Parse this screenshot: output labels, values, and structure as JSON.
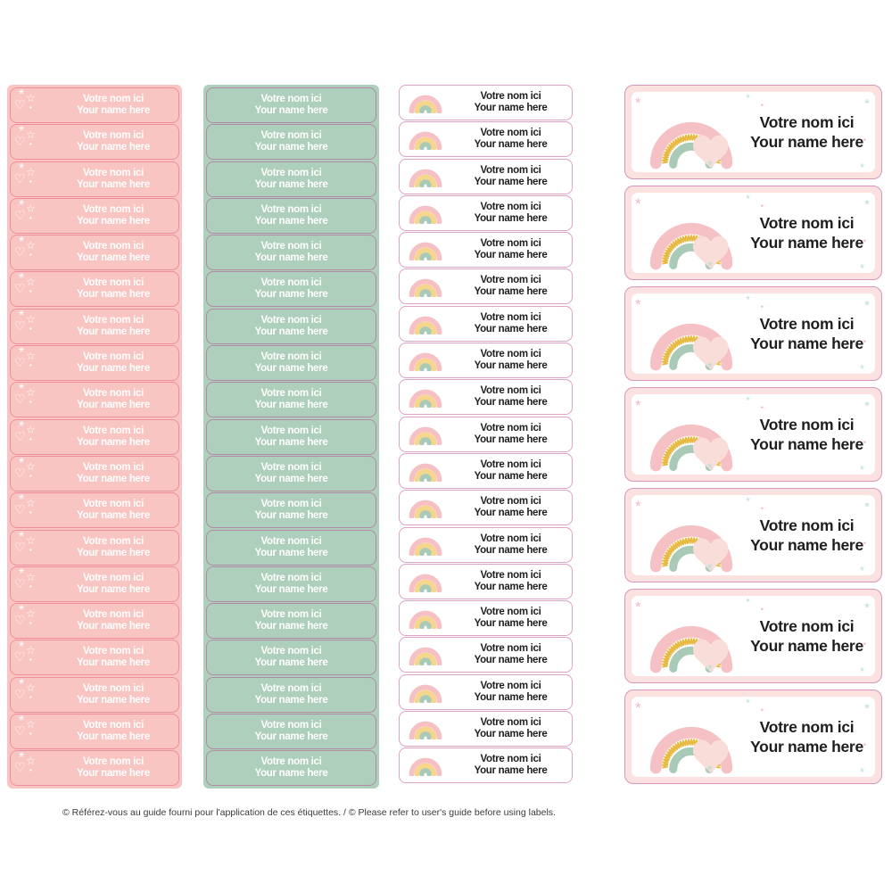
{
  "label_text": {
    "line1": "Votre nom ici",
    "line2": "Your name here"
  },
  "footer": {
    "text": "© Référez-vous au guide fourni pour l'application de ces étiquettes. / © Please refer to user's guide before using labels."
  },
  "icons": {
    "sparkle": "*",
    "star": "☆",
    "heart": "♡",
    "dot": "•"
  },
  "columns": {
    "pink": {
      "count": 19,
      "bg": "#f9c5c2",
      "border": "#ee8f9e",
      "text_color": "#ffffff"
    },
    "green": {
      "count": 19,
      "bg": "#aecfbb",
      "border": "#b18ba6",
      "text_color": "#ffffff"
    },
    "rainbow_small": {
      "count": 19,
      "bg": "#ffffff",
      "border": "#dda2c8",
      "text_color": "#1e1e1e"
    },
    "rainbow_large": {
      "count": 7,
      "bg_outer": "#fbe1e0",
      "border": "#d897ba",
      "bg_inner": "#ffffff",
      "text_color": "#1e1e1e"
    }
  },
  "palette": {
    "rainbow_pink": "#f5c1c4",
    "rainbow_pale_yellow": "#f6d58c",
    "rainbow_gold": "#e6ba43",
    "rainbow_green": "#a9cab6",
    "heart_pink": "#f9ddd8",
    "sparkle_teal": "#bcdfd8",
    "sparkle_pink": "#f2b9c6",
    "dark_text": "#1e1e1e"
  }
}
